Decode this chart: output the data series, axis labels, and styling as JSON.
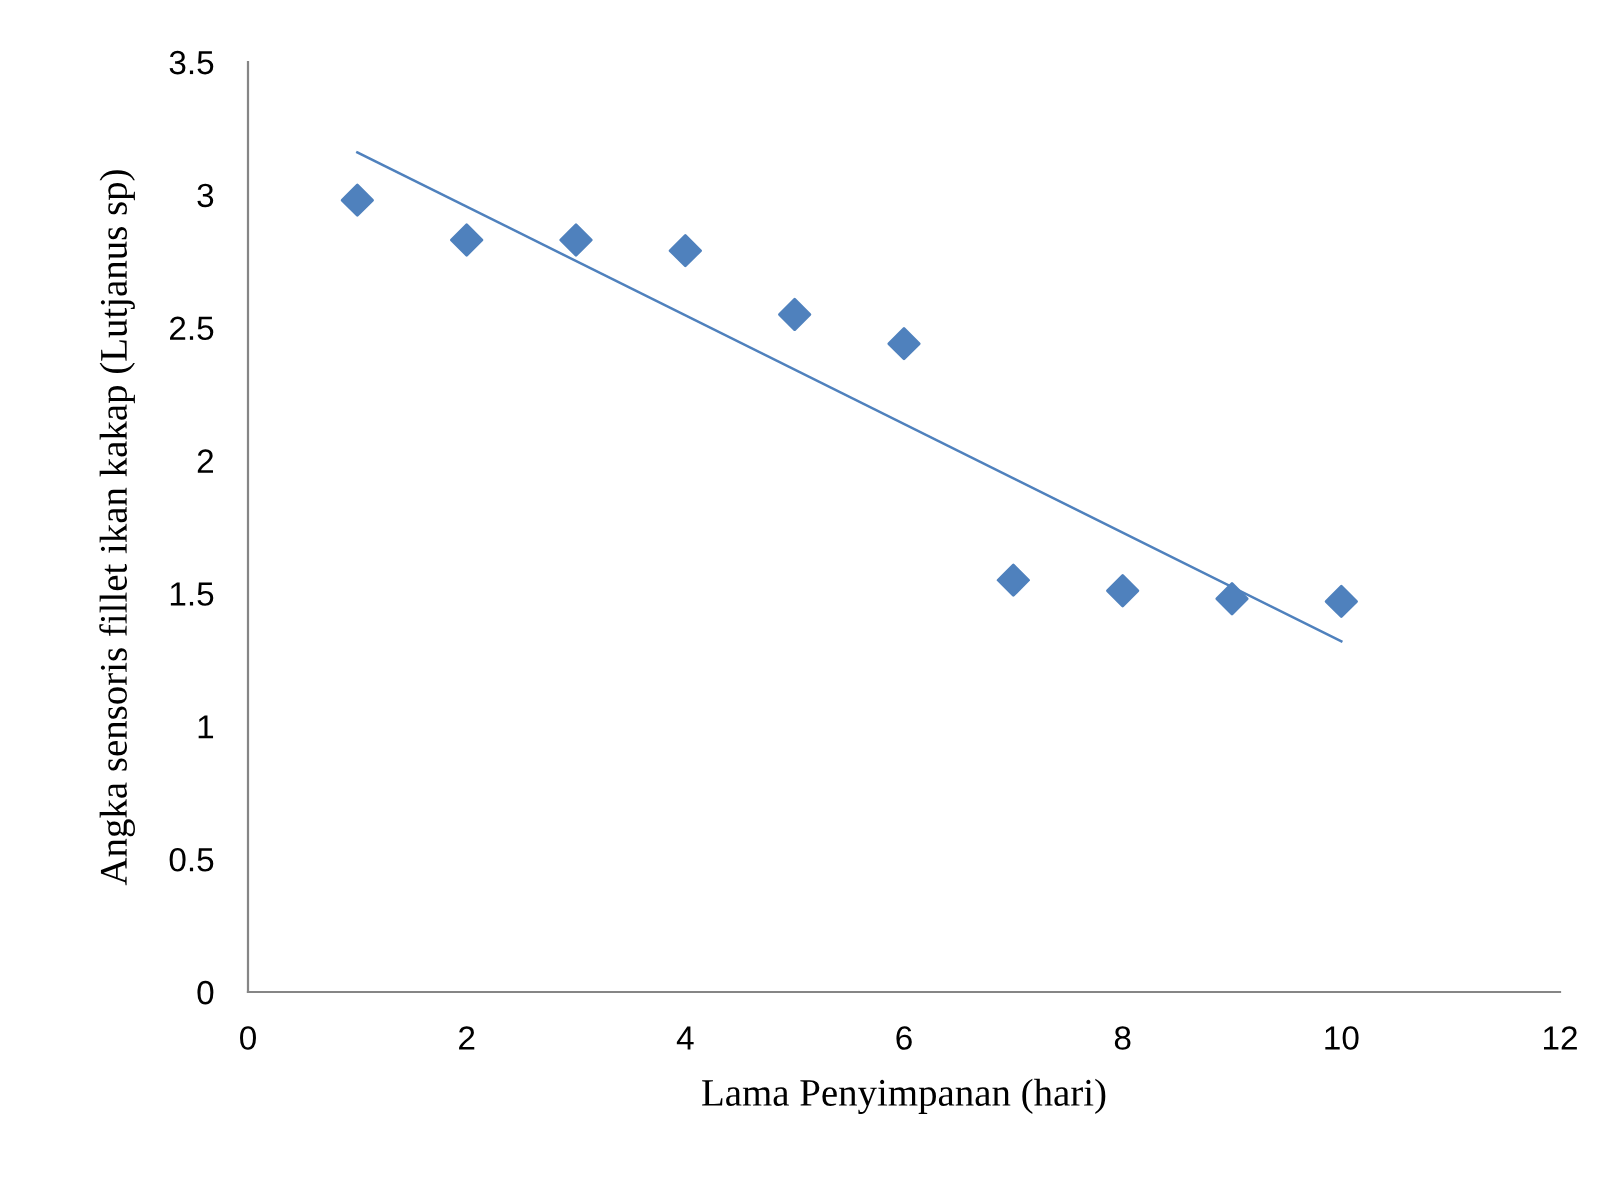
{
  "chart_data": {
    "type": "scatter",
    "xlabel": "Lama Penyimpanan (hari)",
    "ylabel": "Angka sensoris fillet ikan kakap (Lutjanus sp)",
    "x": [
      1,
      2,
      3,
      4,
      5,
      6,
      7,
      8,
      9,
      10
    ],
    "series": [
      {
        "color": "#4f81bd",
        "marker": "diamond",
        "values": [
          2.98,
          2.83,
          2.83,
          2.79,
          2.55,
          2.44,
          1.55,
          1.51,
          1.48,
          1.47
        ]
      },
      {
        "type": "line",
        "color": "#4f81bd",
        "marker": "none",
        "line_style": "solid",
        "x": [
          1,
          10
        ],
        "values": [
          3.16,
          1.32
        ]
      }
    ],
    "xlim": [
      0,
      12
    ],
    "xticks": [
      0,
      2,
      4,
      6,
      8,
      10,
      12
    ],
    "ylim": [
      0,
      3.5
    ],
    "yticks": [
      0,
      0.5,
      1,
      1.5,
      2,
      2.5,
      3,
      3.5
    ],
    "grid": false,
    "legend": false
  }
}
